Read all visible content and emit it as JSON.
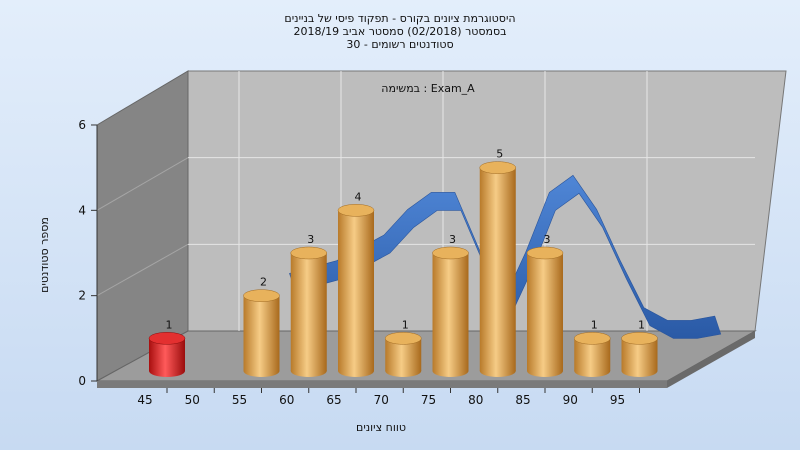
{
  "chart_data": {
    "type": "bar",
    "title_lines": [
      "היסטוגרמת ציונים בקורס - תפקוד פיסי של בניינים",
      "בסמסטר  (02/2018)  סמסטר אביב 2018/19",
      "30 - סטודנטים רשומים"
    ],
    "annotation": "במשימה : Exam_A",
    "xlabel": "טווח ציונים",
    "ylabel": "מספר סטודנטים",
    "x_ticks": [
      "45",
      "50",
      "55",
      "60",
      "65",
      "70",
      "75",
      "80",
      "85",
      "90",
      "95"
    ],
    "y_ticks": [
      "0",
      "2",
      "4",
      "6"
    ],
    "ylim": [
      0,
      6
    ],
    "bins": [
      {
        "x": 45,
        "value": 1,
        "highlight": true
      },
      {
        "x": 55,
        "value": 2
      },
      {
        "x": 60,
        "value": 3
      },
      {
        "x": 65,
        "value": 4
      },
      {
        "x": 70,
        "value": 1
      },
      {
        "x": 75,
        "value": 3
      },
      {
        "x": 80,
        "value": 5
      },
      {
        "x": 85,
        "value": 3
      },
      {
        "x": 90,
        "value": 1
      },
      {
        "x": 95,
        "value": 1
      }
    ],
    "curve": [
      {
        "x": 55,
        "y": 1.7
      },
      {
        "x": 60,
        "y": 2.0
      },
      {
        "x": 65,
        "y": 2.6
      },
      {
        "x": 67.5,
        "y": 3.2
      },
      {
        "x": 70,
        "y": 3.6
      },
      {
        "x": 72.5,
        "y": 3.6
      },
      {
        "x": 75,
        "y": 2.3
      },
      {
        "x": 77.5,
        "y": 1.0
      },
      {
        "x": 80,
        "y": 2.2
      },
      {
        "x": 82.5,
        "y": 3.6
      },
      {
        "x": 85,
        "y": 4.0
      },
      {
        "x": 87.5,
        "y": 3.2
      },
      {
        "x": 90,
        "y": 2.0
      },
      {
        "x": 92.5,
        "y": 0.9
      },
      {
        "x": 95,
        "y": 0.6
      },
      {
        "x": 97.5,
        "y": 0.6
      },
      {
        "x": 100,
        "y": 0.7
      }
    ],
    "grid": true,
    "colors": {
      "bar": "#e0a84f",
      "bar_highlight": "#e01b1b",
      "curve": "#3b73c4",
      "back_wall": "#bdbdbd",
      "side_wall": "#858585",
      "floor": "#9c9c9c"
    }
  }
}
